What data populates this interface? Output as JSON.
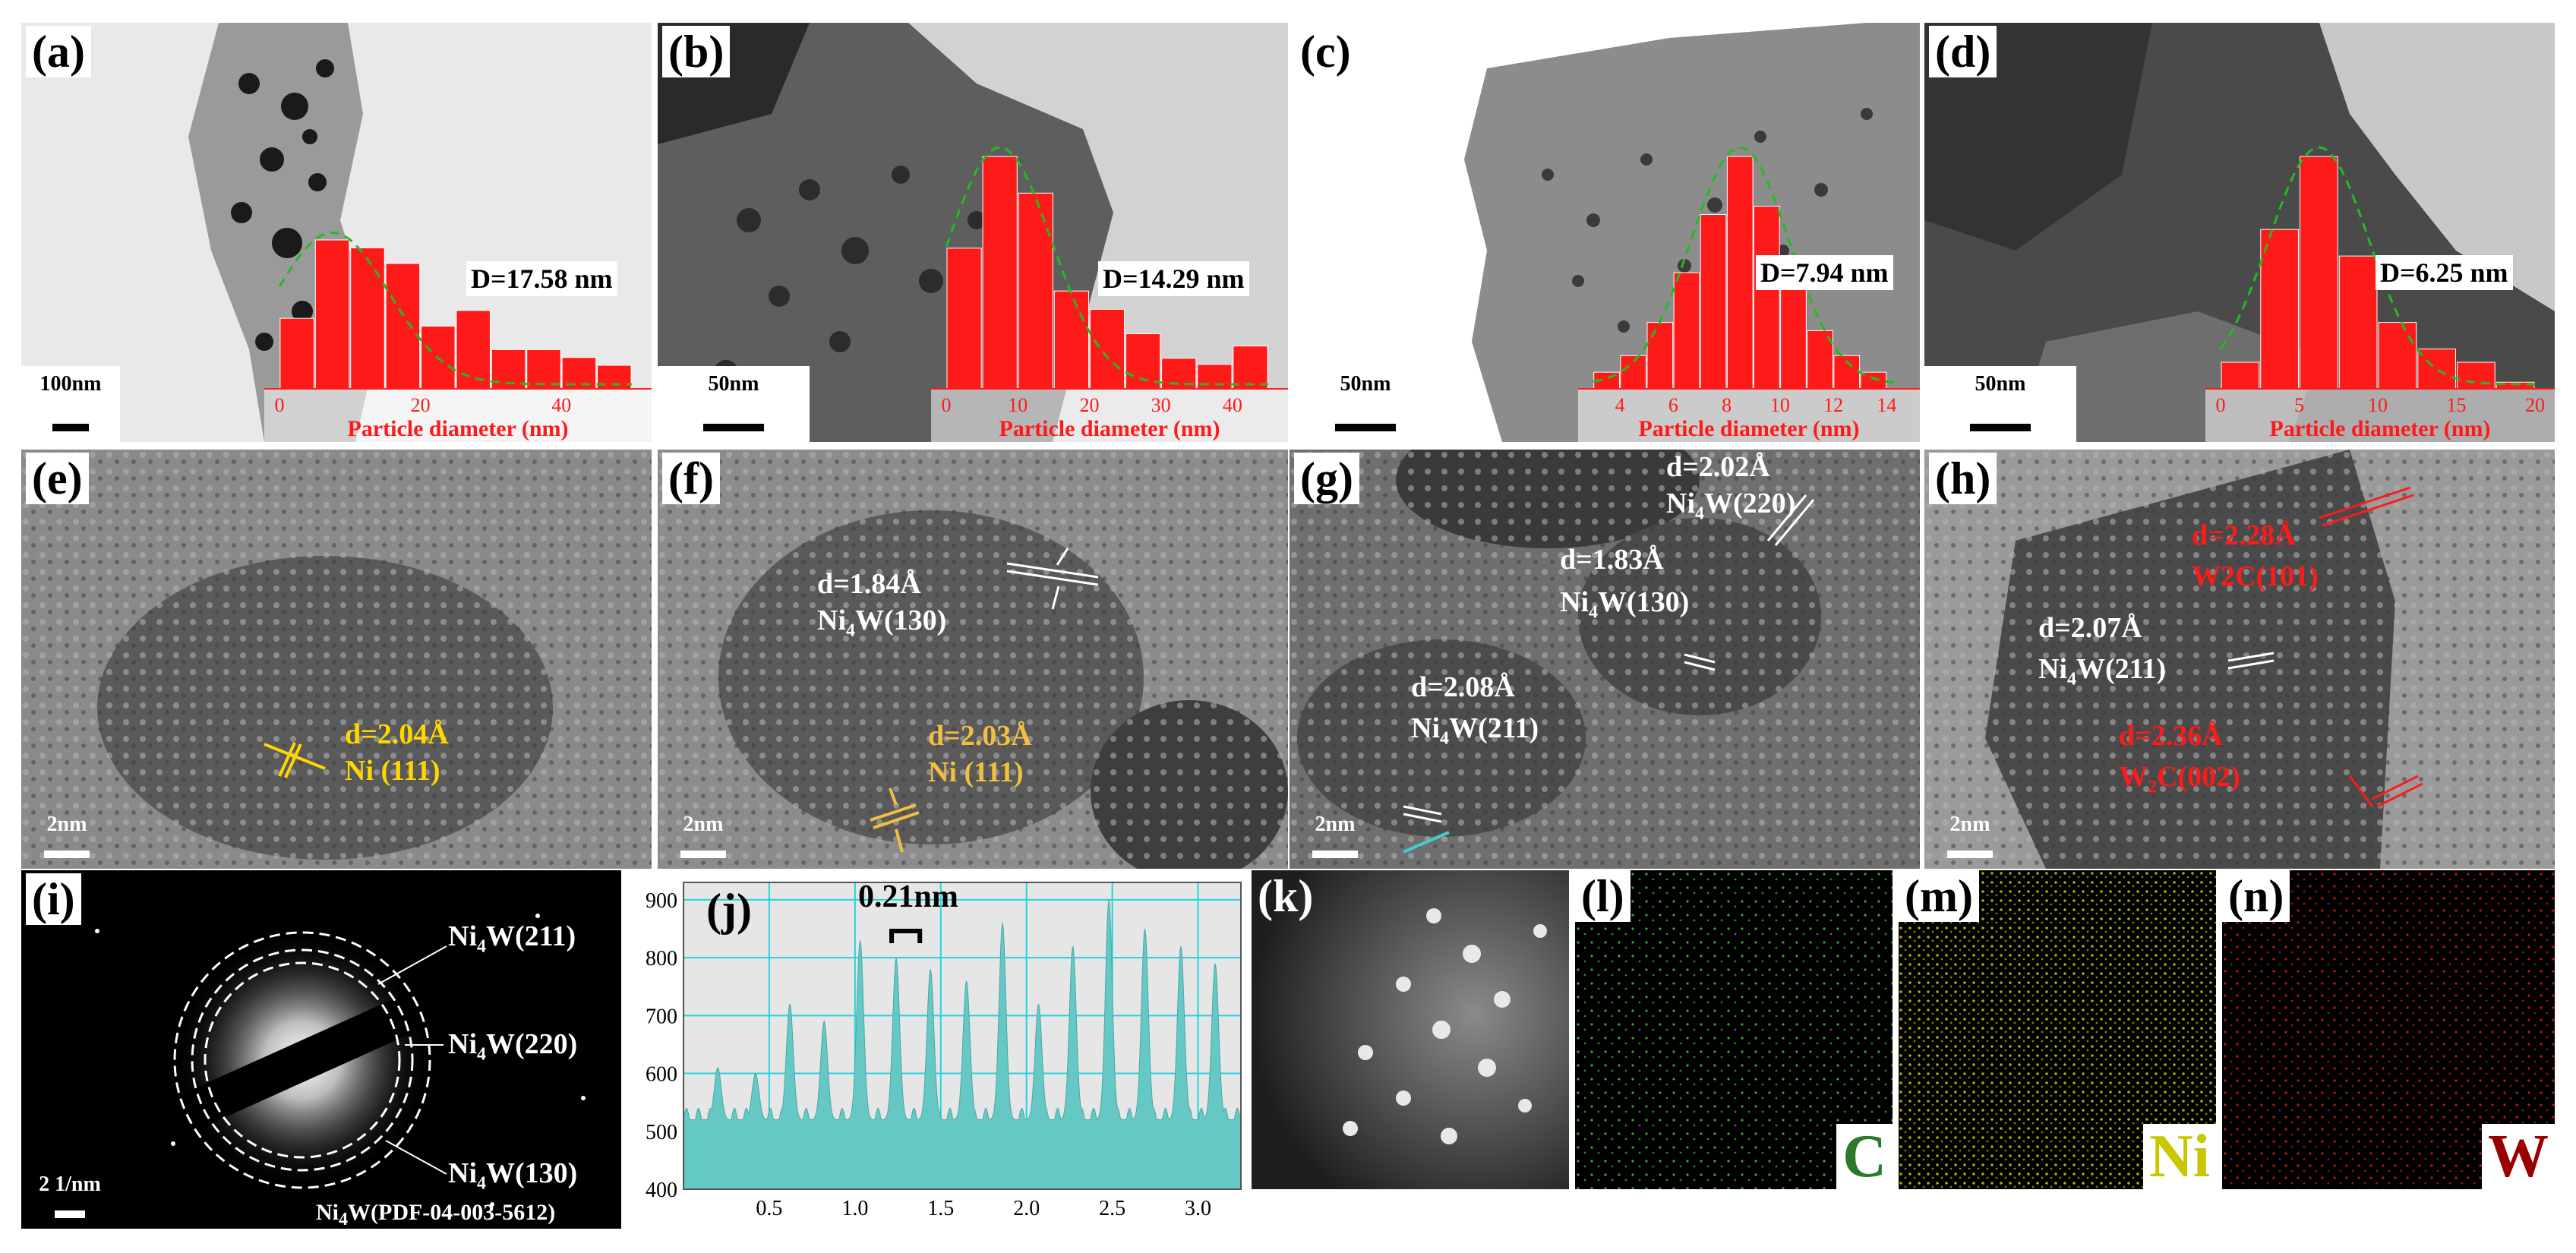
{
  "labels": [
    "(a)",
    "(b)",
    "(c)",
    "(d)",
    "(e)",
    "(f)",
    "(g)",
    "(h)",
    "(i)",
    "(j)",
    "(k)",
    "(l)",
    "(m)",
    "(n)"
  ],
  "scalebars": {
    "a": "100nm",
    "b": "50nm",
    "c": "50nm",
    "d": "50nm",
    "e": "2nm",
    "f": "2nm",
    "g": "2nm",
    "h": "2nm",
    "i": "2 1/nm"
  },
  "histograms": {
    "a": {
      "diameter": "D=17.58 nm",
      "xlabel": "Particle diameter (nm)",
      "ticks": [
        "0",
        "20",
        "40"
      ]
    },
    "b": {
      "diameter": "D=14.29 nm",
      "xlabel": "Particle diameter (nm)",
      "ticks": [
        "0",
        "10",
        "20",
        "30",
        "40"
      ]
    },
    "c": {
      "diameter": "D=7.94 nm",
      "xlabel": "Particle diameter (nm)",
      "ticks": [
        "4",
        "6",
        "8",
        "10",
        "12",
        "14"
      ]
    },
    "d": {
      "diameter": "D=6.25 nm",
      "xlabel": "Particle diameter (nm)",
      "ticks": [
        "0",
        "5",
        "10",
        "15",
        "20"
      ]
    }
  },
  "hrtem": {
    "e": {
      "d1": "d=2.04Å",
      "p1": "Ni (111)"
    },
    "f": {
      "d1": "d=1.84Å",
      "p1": "(130)",
      "d2": "d=2.03Å",
      "p2": "Ni  (111)"
    },
    "g": {
      "d1": "d=2.02Å",
      "p1": "(220)",
      "d2": "d=1.83Å",
      "p2": "(130)",
      "d3": "d=2.08Å",
      "p3": "(211)"
    },
    "h": {
      "d1": "d=2.28Å",
      "p1": "W2C(101)",
      "d2": "d=2.07Å",
      "p2": "(211)",
      "d3": "d=2.36Å",
      "p3": "C(002)"
    }
  },
  "saed": {
    "r1": "(211)",
    "r2": "(220)",
    "r3": "(130)",
    "pdf": "(PDF-04-003-5612)"
  },
  "ni4w": {
    "base": "Ni",
    "sub": "4",
    "suffix": "W"
  },
  "w2c": {
    "base": "W",
    "sub": "2"
  },
  "profile": {
    "spacing": "0.21nm"
  },
  "elements": {
    "l": "C",
    "m": "Ni",
    "n": "W"
  },
  "colors": {
    "red": "#ff1a1a",
    "fit": "#22bb22",
    "teal": "#66c8c4",
    "C": "#2a7a2a",
    "Ni": "#c8c800",
    "W": "#9a0000"
  },
  "chart_data": [
    {
      "type": "bar",
      "title": "",
      "xlabel": "Particle diameter (nm)",
      "ylabel": "",
      "x": [
        2.5,
        7.5,
        12.5,
        17.5,
        22.5,
        27.5,
        32.5,
        37.5,
        42.5,
        47.5
      ],
      "values": [
        9,
        19,
        18,
        16,
        8,
        10,
        5,
        5,
        4,
        3
      ],
      "xlim": [
        0,
        50
      ],
      "fit_mean": 17.58,
      "annotation": "D=17.58 nm"
    },
    {
      "type": "bar",
      "title": "",
      "xlabel": "Particle diameter (nm)",
      "ylabel": "",
      "x": [
        2.5,
        7.5,
        12.5,
        17.5,
        22.5,
        27.5,
        32.5,
        37.5,
        42.5
      ],
      "values": [
        23,
        38,
        32,
        16,
        13,
        9,
        5,
        4,
        7
      ],
      "xlim": [
        0,
        45
      ],
      "fit_mean": 14.29,
      "annotation": "D=14.29 nm"
    },
    {
      "type": "bar",
      "title": "",
      "xlabel": "Particle diameter (nm)",
      "ylabel": "",
      "x": [
        3.5,
        4.5,
        5.5,
        6.5,
        7.5,
        8.5,
        9.5,
        10.5,
        11.5,
        12.5,
        13.5
      ],
      "values": [
        2,
        4,
        8,
        14,
        21,
        28,
        22,
        13,
        7,
        4,
        2
      ],
      "xlim": [
        3,
        14.5
      ],
      "fit_mean": 7.94,
      "annotation": "D=7.94 nm"
    },
    {
      "type": "bar",
      "title": "",
      "xlabel": "Particle diameter (nm)",
      "ylabel": "",
      "x": [
        1.25,
        3.75,
        6.25,
        8.75,
        11.25,
        13.75,
        16.25,
        18.75
      ],
      "values": [
        4,
        24,
        35,
        20,
        10,
        6,
        4,
        1
      ],
      "xlim": [
        0,
        20
      ],
      "fit_mean": 6.25,
      "annotation": "D=6.25 nm"
    },
    {
      "type": "area",
      "title": "",
      "xlabel": "",
      "ylabel": "",
      "xlim": [
        0,
        3.25
      ],
      "ylim": [
        400,
        930
      ],
      "xticks": [
        "0.5",
        "1.0",
        "1.5",
        "2.0",
        "2.5",
        "3.0"
      ],
      "yticks": [
        "400",
        "500",
        "600",
        "700",
        "800",
        "900"
      ],
      "peak_x": [
        0.2,
        0.42,
        0.62,
        0.82,
        1.03,
        1.24,
        1.44,
        1.65,
        1.86,
        2.07,
        2.27,
        2.48,
        2.69,
        2.9,
        3.1
      ],
      "peak_y": [
        610,
        600,
        720,
        690,
        830,
        800,
        780,
        760,
        860,
        720,
        820,
        900,
        850,
        820,
        790
      ],
      "annotation": "0.21nm"
    }
  ]
}
